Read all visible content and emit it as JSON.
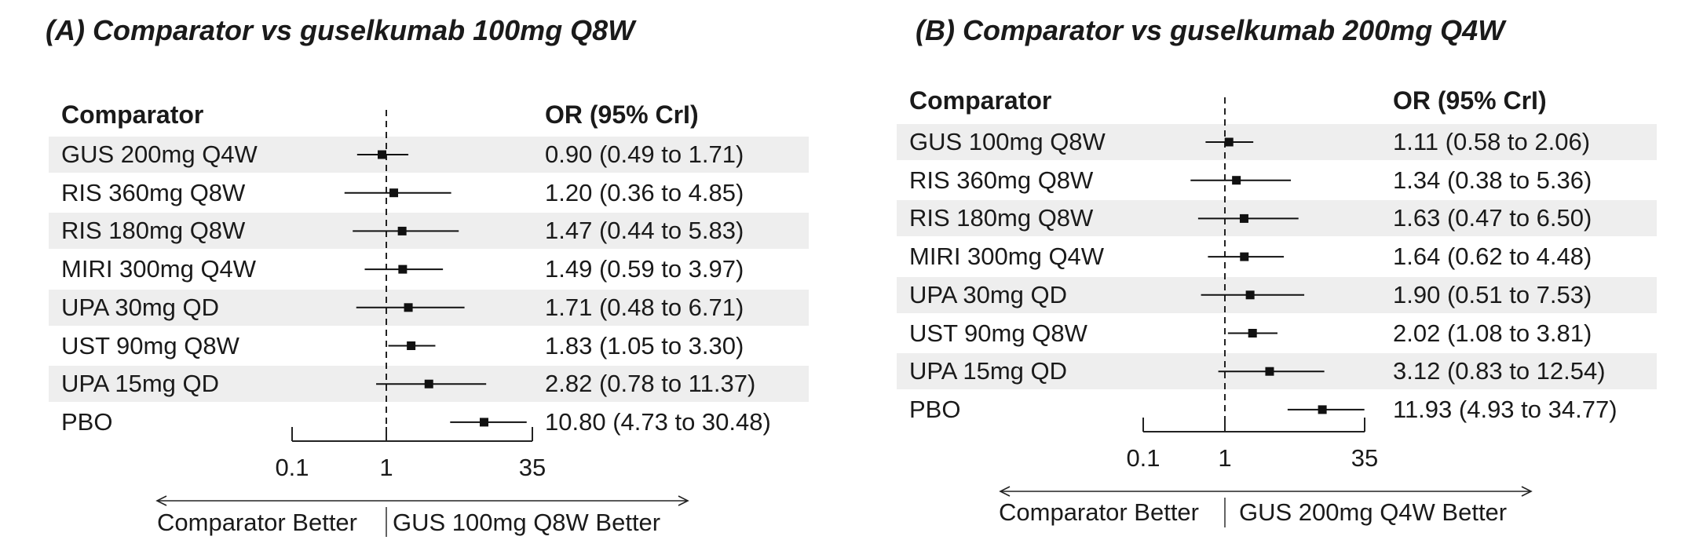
{
  "chart_data": [
    {
      "type": "forest",
      "title": "(A) Comparator vs guselkumab 100mg Q8W",
      "column_headers": {
        "comparator": "Comparator",
        "estimate": "OR (95% CrI)"
      },
      "x_scale": "log",
      "xlim": [
        0.1,
        35
      ],
      "reference_line": 1,
      "ticks": [
        {
          "value": 0.1,
          "label": "0.1"
        },
        {
          "value": 1,
          "label": "1"
        },
        {
          "value": 35,
          "label": "35"
        }
      ],
      "direction_labels": {
        "left": "Comparator Better",
        "right": "GUS 100mg Q8W Better"
      },
      "rows": [
        {
          "label": "GUS 200mg Q4W",
          "or": 0.9,
          "lo": 0.49,
          "hi": 1.71,
          "text": "0.90 (0.49 to 1.71)"
        },
        {
          "label": "RIS 360mg Q8W",
          "or": 1.2,
          "lo": 0.36,
          "hi": 4.85,
          "text": "1.20 (0.36 to 4.85)"
        },
        {
          "label": "RIS 180mg Q8W",
          "or": 1.47,
          "lo": 0.44,
          "hi": 5.83,
          "text": "1.47 (0.44 to 5.83)"
        },
        {
          "label": "MIRI 300mg Q4W",
          "or": 1.49,
          "lo": 0.59,
          "hi": 3.97,
          "text": "1.49 (0.59 to 3.97)"
        },
        {
          "label": "UPA 30mg QD",
          "or": 1.71,
          "lo": 0.48,
          "hi": 6.71,
          "text": "1.71 (0.48 to 6.71)"
        },
        {
          "label": "UST 90mg Q8W",
          "or": 1.83,
          "lo": 1.05,
          "hi": 3.3,
          "text": "1.83 (1.05 to 3.30)"
        },
        {
          "label": "UPA 15mg QD",
          "or": 2.82,
          "lo": 0.78,
          "hi": 11.37,
          "text": "2.82 (0.78 to 11.37)"
        },
        {
          "label": "PBO",
          "or": 10.8,
          "lo": 4.73,
          "hi": 30.48,
          "text": "10.80 (4.73 to 30.48)"
        }
      ]
    },
    {
      "type": "forest",
      "title": "(B) Comparator vs guselkumab 200mg Q4W",
      "column_headers": {
        "comparator": "Comparator",
        "estimate": "OR (95% CrI)"
      },
      "x_scale": "log",
      "xlim": [
        0.1,
        35
      ],
      "reference_line": 1,
      "ticks": [
        {
          "value": 0.1,
          "label": "0.1"
        },
        {
          "value": 1,
          "label": "1"
        },
        {
          "value": 35,
          "label": "35"
        }
      ],
      "direction_labels": {
        "left": "Comparator Better",
        "right": "GUS 200mg Q4W Better"
      },
      "rows": [
        {
          "label": "GUS 100mg Q8W",
          "or": 1.11,
          "lo": 0.58,
          "hi": 2.06,
          "text": "1.11 (0.58 to 2.06)"
        },
        {
          "label": "RIS 360mg Q8W",
          "or": 1.34,
          "lo": 0.38,
          "hi": 5.36,
          "text": "1.34 (0.38 to 5.36)"
        },
        {
          "label": "RIS 180mg Q8W",
          "or": 1.63,
          "lo": 0.47,
          "hi": 6.5,
          "text": "1.63 (0.47 to 6.50)"
        },
        {
          "label": "MIRI 300mg Q4W",
          "or": 1.64,
          "lo": 0.62,
          "hi": 4.48,
          "text": "1.64 (0.62 to 4.48)"
        },
        {
          "label": "UPA 30mg QD",
          "or": 1.9,
          "lo": 0.51,
          "hi": 7.53,
          "text": "1.90 (0.51 to 7.53)"
        },
        {
          "label": "UST 90mg Q8W",
          "or": 2.02,
          "lo": 1.08,
          "hi": 3.81,
          "text": "2.02 (1.08 to 3.81)"
        },
        {
          "label": "UPA 15mg QD",
          "or": 3.12,
          "lo": 0.83,
          "hi": 12.54,
          "text": "3.12 (0.83 to 12.54)"
        },
        {
          "label": "PBO",
          "or": 11.93,
          "lo": 4.93,
          "hi": 34.77,
          "text": "11.93 (4.93 to 34.77)"
        }
      ]
    }
  ]
}
